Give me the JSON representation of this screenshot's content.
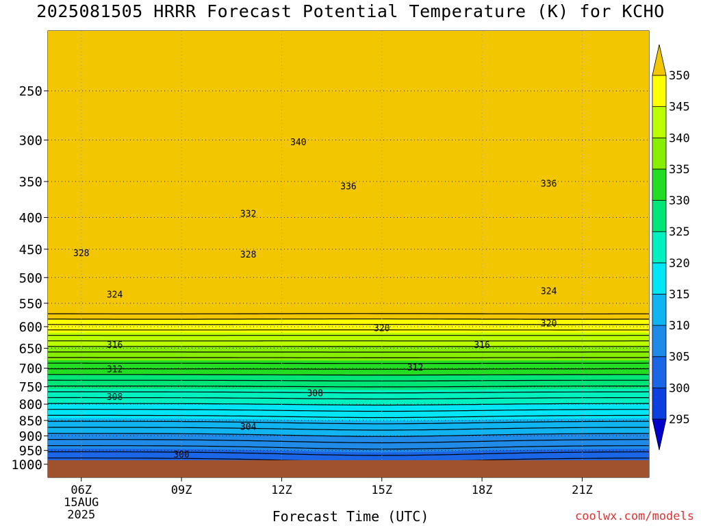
{
  "chart_data": {
    "type": "contour",
    "title": "2025081505 HRRR Forecast Potential Temperature (K) for KCHO",
    "xlabel": "Forecast Time (UTC)",
    "ylabel": "",
    "credit": "coolwx.com/models",
    "x_ticks": [
      {
        "hour": 6,
        "label": "06Z",
        "sub": [
          "15AUG",
          "2025"
        ]
      },
      {
        "hour": 9,
        "label": "09Z",
        "sub": []
      },
      {
        "hour": 12,
        "label": "12Z",
        "sub": []
      },
      {
        "hour": 15,
        "label": "15Z",
        "sub": []
      },
      {
        "hour": 18,
        "label": "18Z",
        "sub": []
      },
      {
        "hour": 21,
        "label": "21Z",
        "sub": []
      }
    ],
    "x_range": [
      5,
      23
    ],
    "y_scale": "log-pressure",
    "y_range_hpa": [
      1050,
      200
    ],
    "y_ticks": [
      250,
      300,
      350,
      400,
      450,
      500,
      550,
      600,
      650,
      700,
      750,
      800,
      850,
      900,
      950,
      1000
    ],
    "grid": "dotted",
    "surface_pressure_hpa": 985,
    "colorbar": {
      "levels": [
        295,
        300,
        305,
        310,
        315,
        320,
        325,
        330,
        335,
        340,
        345,
        350
      ],
      "colors": [
        "#0000cc",
        "#0a3fe0",
        "#1a66e6",
        "#1f8ae8",
        "#10b4f0",
        "#00e6f6",
        "#00f0c0",
        "#00e676",
        "#22dd22",
        "#88ee00",
        "#bbff00",
        "#ffff00",
        "#f2c600"
      ],
      "extend": "both"
    },
    "theta_at_1000_hpa_K": 300,
    "contour_interval_K": 2,
    "contour_labels": [
      {
        "value": "340",
        "hour": 12.5,
        "p": 302
      },
      {
        "value": "336",
        "hour": 14.0,
        "p": 356
      },
      {
        "value": "336",
        "hour": 20.0,
        "p": 352
      },
      {
        "value": "332",
        "hour": 11.0,
        "p": 394
      },
      {
        "value": "328",
        "hour": 6.0,
        "p": 456
      },
      {
        "value": "328",
        "hour": 11.0,
        "p": 458
      },
      {
        "value": "324",
        "hour": 7.0,
        "p": 532
      },
      {
        "value": "324",
        "hour": 20.0,
        "p": 525
      },
      {
        "value": "320",
        "hour": 15.0,
        "p": 602
      },
      {
        "value": "320",
        "hour": 20.0,
        "p": 592
      },
      {
        "value": "316",
        "hour": 7.0,
        "p": 641
      },
      {
        "value": "316",
        "hour": 18.0,
        "p": 641
      },
      {
        "value": "312",
        "hour": 7.0,
        "p": 702
      },
      {
        "value": "312",
        "hour": 16.0,
        "p": 697
      },
      {
        "value": "308",
        "hour": 7.0,
        "p": 778
      },
      {
        "value": "308",
        "hour": 13.0,
        "p": 767
      },
      {
        "value": "304",
        "hour": 11.0,
        "p": 869
      },
      {
        "value": "300",
        "hour": 9.0,
        "p": 963
      }
    ]
  }
}
